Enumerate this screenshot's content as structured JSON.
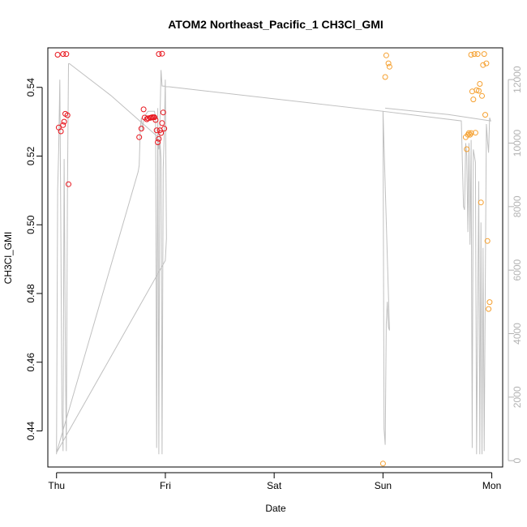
{
  "chart_data": {
    "type": "scatter",
    "title": "ATOM2 Northeast_Pacific_1 CH3Cl_GMI",
    "xlabel": "Date",
    "ylabel": "CH3Cl_GMI",
    "x_ticks": [
      "Thu",
      "Fri",
      "Sat",
      "Sun",
      "Mon"
    ],
    "xlim": [
      -0.08,
      4.1
    ],
    "ylim": [
      0.4295,
      0.5515
    ],
    "y_ticks": [
      0.44,
      0.46,
      0.48,
      0.5,
      0.52,
      0.54
    ],
    "y2lim": [
      -200,
      13000
    ],
    "y2_ticks": [
      0,
      2000,
      4000,
      6000,
      8000,
      10000,
      12000
    ],
    "grid": false,
    "colors": {
      "series_red": "#e8141c",
      "series_orange": "#f5a030",
      "altitude_line": "#c0c0c0",
      "right_axis": "#b3b3b3"
    },
    "series": [
      {
        "color": "red",
        "points": [
          [
            0.01,
            0.5495
          ],
          [
            0.06,
            0.5497
          ],
          [
            0.09,
            0.5497
          ],
          [
            0.02,
            0.5283
          ],
          [
            0.04,
            0.5272
          ],
          [
            0.06,
            0.529
          ],
          [
            0.07,
            0.53
          ],
          [
            0.08,
            0.5323
          ],
          [
            0.1,
            0.5319
          ],
          [
            0.11,
            0.5118
          ],
          [
            0.76,
            0.5255
          ],
          [
            0.78,
            0.528
          ],
          [
            0.8,
            0.5336
          ],
          [
            0.81,
            0.5312
          ],
          [
            0.83,
            0.5307
          ],
          [
            0.84,
            0.531
          ],
          [
            0.86,
            0.5311
          ],
          [
            0.87,
            0.5312
          ],
          [
            0.88,
            0.5313
          ],
          [
            0.89,
            0.5313
          ],
          [
            0.9,
            0.5313
          ],
          [
            0.91,
            0.5305
          ],
          [
            0.92,
            0.5275
          ],
          [
            0.93,
            0.524
          ],
          [
            0.94,
            0.525
          ],
          [
            0.95,
            0.5275
          ],
          [
            0.96,
            0.5267
          ],
          [
            0.97,
            0.5296
          ],
          [
            0.98,
            0.5327
          ],
          [
            0.99,
            0.528
          ],
          [
            0.94,
            0.5497
          ],
          [
            0.97,
            0.5498
          ]
        ]
      },
      {
        "color": "orange",
        "points": [
          [
            3.0,
            0.4305
          ],
          [
            3.02,
            0.543
          ],
          [
            3.03,
            0.5493
          ],
          [
            3.05,
            0.547
          ],
          [
            3.06,
            0.546
          ],
          [
            3.76,
            0.5255
          ],
          [
            3.77,
            0.522
          ],
          [
            3.78,
            0.5262
          ],
          [
            3.79,
            0.5267
          ],
          [
            3.8,
            0.5262
          ],
          [
            3.81,
            0.5267
          ],
          [
            3.82,
            0.5388
          ],
          [
            3.83,
            0.5365
          ],
          [
            3.85,
            0.5268
          ],
          [
            3.86,
            0.5392
          ],
          [
            3.87,
            0.5497
          ],
          [
            3.88,
            0.539
          ],
          [
            3.89,
            0.541
          ],
          [
            3.9,
            0.5065
          ],
          [
            3.91,
            0.5375
          ],
          [
            3.92,
            0.5465
          ],
          [
            3.93,
            0.5497
          ],
          [
            3.94,
            0.532
          ],
          [
            3.95,
            0.547
          ],
          [
            3.96,
            0.4953
          ],
          [
            3.97,
            0.4755
          ],
          [
            3.98,
            0.4775
          ],
          [
            3.81,
            0.5495
          ],
          [
            3.84,
            0.5497
          ]
        ]
      }
    ],
    "altitude_line": {
      "axis": "right",
      "points": [
        [
          0.0,
          200
        ],
        [
          0.01,
          8500
        ],
        [
          0.02,
          9800
        ],
        [
          0.03,
          12000
        ],
        [
          0.04,
          7000
        ],
        [
          0.05,
          1500
        ],
        [
          0.06,
          300
        ],
        [
          0.07,
          9500
        ],
        [
          0.08,
          4000
        ],
        [
          0.09,
          300
        ],
        [
          0.1,
          8500
        ],
        [
          0.11,
          12500
        ],
        [
          0.12,
          12500
        ],
        [
          0.5,
          11500
        ],
        [
          0.93,
          10200
        ],
        [
          0.94,
          9800
        ],
        [
          0.95,
          10100
        ],
        [
          0.96,
          9500
        ],
        [
          0.97,
          200
        ],
        [
          0.98,
          9200
        ],
        [
          0.99,
          10300
        ],
        [
          1.0,
          12000
        ],
        [
          1.01,
          7000
        ],
        [
          1.0,
          6300
        ],
        [
          0.0,
          250
        ],
        [
          0.75,
          9100
        ],
        [
          0.76,
          9300
        ],
        [
          0.77,
          10500
        ],
        [
          0.78,
          10800
        ],
        [
          0.79,
          10400
        ],
        [
          0.8,
          10700
        ],
        [
          0.82,
          10900
        ],
        [
          0.84,
          11000
        ],
        [
          0.86,
          11000
        ],
        [
          0.88,
          11000
        ],
        [
          0.9,
          11000
        ],
        [
          0.91,
          10800
        ],
        [
          0.92,
          400
        ],
        [
          0.93,
          11100
        ],
        [
          0.94,
          200
        ],
        [
          0.95,
          10600
        ],
        [
          0.96,
          12300
        ],
        [
          0.97,
          11800
        ],
        [
          3.0,
          11000
        ],
        [
          3.01,
          1000
        ],
        [
          3.02,
          500
        ],
        [
          3.03,
          4300
        ],
        [
          3.04,
          5000
        ],
        [
          3.05,
          4200
        ],
        [
          3.06,
          4100
        ],
        [
          3.0,
          11000
        ],
        [
          3.72,
          10700
        ],
        [
          3.74,
          8000
        ],
        [
          3.75,
          7900
        ],
        [
          3.76,
          10000
        ],
        [
          3.77,
          9600
        ],
        [
          3.78,
          7200
        ],
        [
          3.79,
          10000
        ],
        [
          3.8,
          6800
        ],
        [
          3.81,
          10100
        ],
        [
          3.82,
          400
        ],
        [
          3.83,
          9800
        ],
        [
          3.85,
          9400
        ],
        [
          3.86,
          200
        ],
        [
          3.88,
          8800
        ],
        [
          3.89,
          200
        ],
        [
          3.9,
          7500
        ],
        [
          3.91,
          200
        ],
        [
          3.92,
          6700
        ],
        [
          3.93,
          300
        ],
        [
          3.95,
          10600
        ],
        [
          3.96,
          10100
        ],
        [
          3.97,
          9700
        ],
        [
          3.98,
          10800
        ],
        [
          3.99,
          10700
        ],
        [
          3.6,
          10900
        ],
        [
          3.02,
          11100
        ]
      ]
    }
  }
}
